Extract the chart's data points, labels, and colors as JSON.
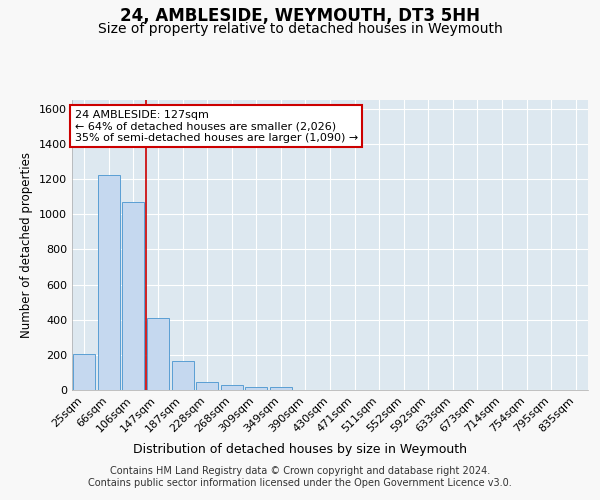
{
  "title": "24, AMBLESIDE, WEYMOUTH, DT3 5HH",
  "subtitle": "Size of property relative to detached houses in Weymouth",
  "xlabel": "Distribution of detached houses by size in Weymouth",
  "ylabel": "Number of detached properties",
  "categories": [
    "25sqm",
    "66sqm",
    "106sqm",
    "147sqm",
    "187sqm",
    "228sqm",
    "268sqm",
    "309sqm",
    "349sqm",
    "390sqm",
    "430sqm",
    "471sqm",
    "511sqm",
    "552sqm",
    "592sqm",
    "633sqm",
    "673sqm",
    "714sqm",
    "754sqm",
    "795sqm",
    "835sqm"
  ],
  "values": [
    204,
    1225,
    1072,
    410,
    163,
    45,
    28,
    18,
    15,
    0,
    0,
    0,
    0,
    0,
    0,
    0,
    0,
    0,
    0,
    0,
    0
  ],
  "bar_color": "#c5d8ef",
  "bar_edge_color": "#5a9fd4",
  "vline_x": 2.5,
  "vline_color": "#cc0000",
  "annotation_line1": "24 AMBLESIDE: 127sqm",
  "annotation_line2": "← 64% of detached houses are smaller (2,026)",
  "annotation_line3": "35% of semi-detached houses are larger (1,090) →",
  "annotation_box_color": "#ffffff",
  "annotation_box_edge": "#cc0000",
  "ylim": [
    0,
    1650
  ],
  "yticks": [
    0,
    200,
    400,
    600,
    800,
    1000,
    1200,
    1400,
    1600
  ],
  "background_color": "#dde8f0",
  "grid_color": "#ffffff",
  "footnote": "Contains HM Land Registry data © Crown copyright and database right 2024.\nContains public sector information licensed under the Open Government Licence v3.0.",
  "title_fontsize": 12,
  "subtitle_fontsize": 10,
  "xlabel_fontsize": 9,
  "ylabel_fontsize": 8.5,
  "tick_fontsize": 8,
  "annot_fontsize": 8,
  "footnote_fontsize": 7
}
